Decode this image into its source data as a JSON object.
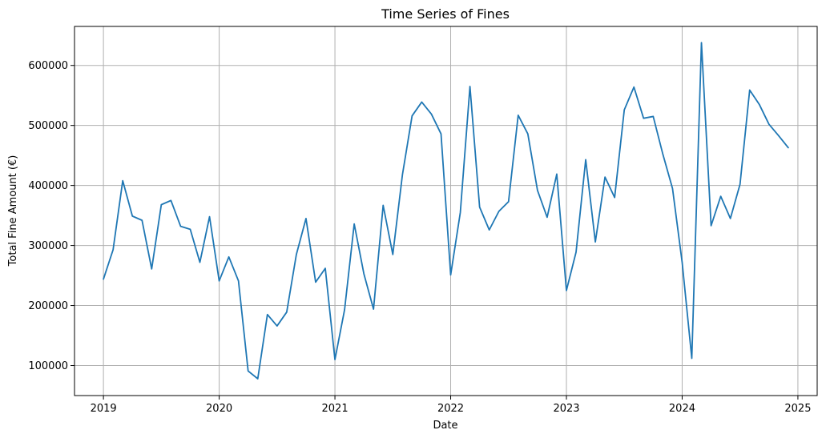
{
  "chart_data": {
    "type": "line",
    "title": "Time Series of Fines",
    "xlabel": "Date",
    "ylabel": "Total Fine Amount (€)",
    "x_ticks": [
      "2019",
      "2020",
      "2021",
      "2022",
      "2023",
      "2024",
      "2025"
    ],
    "y_ticks": [
      "100000",
      "200000",
      "300000",
      "400000",
      "500000",
      "600000"
    ],
    "xlim": [
      "2018-10",
      "2025-03"
    ],
    "ylim": [
      50000,
      665000
    ],
    "grid": true,
    "color": "#1f77b4",
    "x": [
      "2019-01",
      "2019-02",
      "2019-03",
      "2019-04",
      "2019-05",
      "2019-06",
      "2019-07",
      "2019-08",
      "2019-09",
      "2019-10",
      "2019-11",
      "2019-12",
      "2020-01",
      "2020-02",
      "2020-03",
      "2020-04",
      "2020-05",
      "2020-06",
      "2020-07",
      "2020-08",
      "2020-09",
      "2020-10",
      "2020-11",
      "2020-12",
      "2021-01",
      "2021-02",
      "2021-03",
      "2021-04",
      "2021-05",
      "2021-06",
      "2021-07",
      "2021-08",
      "2021-09",
      "2021-10",
      "2021-11",
      "2021-12",
      "2022-01",
      "2022-02",
      "2022-03",
      "2022-04",
      "2022-05",
      "2022-06",
      "2022-07",
      "2022-08",
      "2022-09",
      "2022-10",
      "2022-11",
      "2022-12",
      "2023-01",
      "2023-02",
      "2023-03",
      "2023-04",
      "2023-05",
      "2023-06",
      "2023-07",
      "2023-08",
      "2023-09",
      "2023-10",
      "2023-11",
      "2023-12",
      "2024-01",
      "2024-02",
      "2024-03",
      "2024-04",
      "2024-05",
      "2024-06",
      "2024-07",
      "2024-08",
      "2024-09",
      "2024-10",
      "2024-11",
      "2024-12"
    ],
    "values": [
      244000,
      293000,
      408000,
      349000,
      342000,
      261000,
      368000,
      375000,
      332000,
      327000,
      272000,
      348000,
      241000,
      281000,
      241000,
      91000,
      78000,
      185000,
      166000,
      189000,
      285000,
      345000,
      239000,
      262000,
      110000,
      193000,
      336000,
      253000,
      194000,
      367000,
      285000,
      418000,
      516000,
      539000,
      519000,
      486000,
      251000,
      355000,
      565000,
      364000,
      326000,
      357000,
      373000,
      517000,
      486000,
      392000,
      347000,
      419000,
      225000,
      289000,
      443000,
      306000,
      414000,
      380000,
      526000,
      564000,
      512000,
      515000,
      452000,
      395000,
      272000,
      112000,
      638000,
      333000,
      382000,
      345000,
      402000,
      559000,
      535000,
      502000,
      483000,
      463000
    ]
  }
}
